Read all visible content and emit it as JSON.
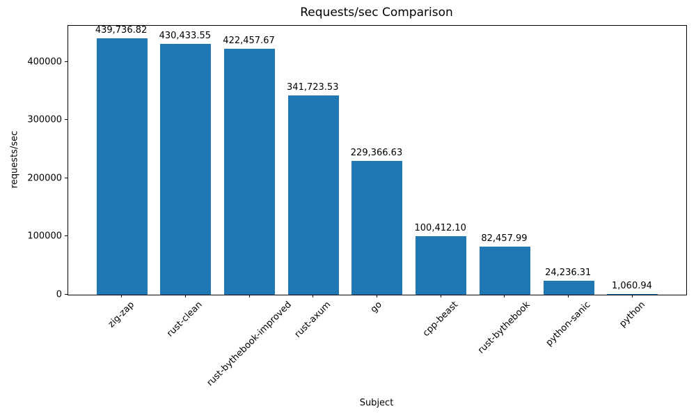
{
  "chart_data": {
    "type": "bar",
    "title": "Requests/sec Comparison",
    "xlabel": "Subject",
    "ylabel": "requests/sec",
    "categories": [
      "zig-zap",
      "rust-clean",
      "rust-bythebook-improved",
      "rust-axum",
      "go",
      "cpp-beast",
      "rust-bythebook",
      "python-sanic",
      "python"
    ],
    "values": [
      439736.82,
      430433.55,
      422457.67,
      341723.53,
      229366.63,
      100412.1,
      82457.99,
      24236.31,
      1060.94
    ],
    "value_labels": [
      "439,736.82",
      "430,433.55",
      "422,457.67",
      "341,723.53",
      "229,366.63",
      "100,412.10",
      "82,457.99",
      "24,236.31",
      "1,060.94"
    ],
    "yticks": [
      0,
      100000,
      200000,
      300000,
      400000
    ],
    "ylim": [
      0,
      461723.66
    ],
    "bar_color": "#1f77b4",
    "axis_color": "#000000",
    "grid": false,
    "legend": null
  }
}
